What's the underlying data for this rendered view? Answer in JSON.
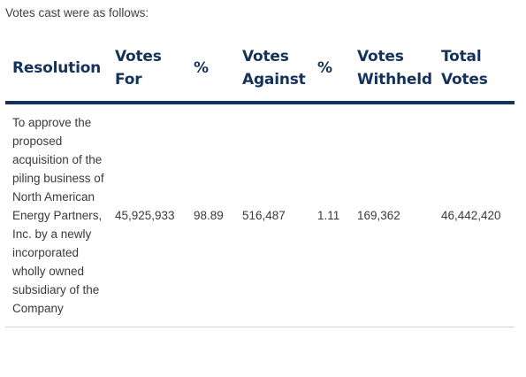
{
  "intro": "Votes cast were as follows:",
  "table": {
    "headers": {
      "resolution": "Resolution",
      "votes_for": "Votes For",
      "pct_for": "%",
      "votes_against": "Votes Against",
      "pct_against": "%",
      "votes_withheld": "Votes Withheld",
      "total_votes": "Total Votes"
    },
    "rows": [
      {
        "resolution": "To approve the proposed acquisition of the piling business of North American Energy Partners, Inc. by a newly incorporated wholly owned subsidiary of the Company",
        "votes_for": "45,925,933",
        "pct_for": "98.89",
        "votes_against": "516,487",
        "pct_against": "1.11",
        "votes_withheld": "169,362",
        "total_votes": "46,442,420"
      }
    ]
  }
}
